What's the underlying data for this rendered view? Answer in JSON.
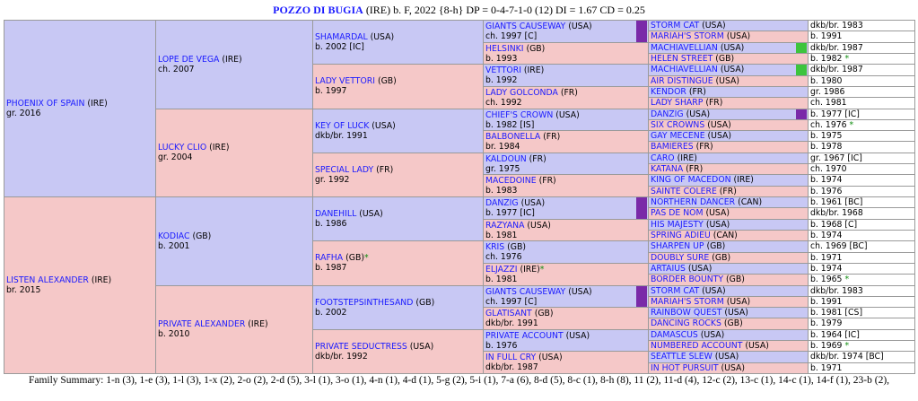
{
  "header": {
    "name": "POZZO DI BUGIA",
    "rest": " (IRE) b. F, 2022 {8-h} DP = 0-4-7-1-0 (12) DI = 1.67   CD = 0.25"
  },
  "footer": {
    "summary": "Family Summary: 1-n (3), 1-e (3), 1-l (3), 1-x (2), 2-o (2), 2-d (5), 3-l (1), 3-o (1), 4-n (1), 4-d (1), 5-g (2), 5-i (1), 7-a (6), 8-d (5), 8-c (1), 8-h (8), 11 (2), 11-d (4), 12-c (2), 13-c (1), 14-c (1), 14-f (1), 23-b (2),"
  },
  "colors": {
    "male": "#c8c8f4",
    "female": "#f5c8c8",
    "link": "#1a1aff",
    "marker_violet": "#7a2aa8",
    "marker_green": "#3dc43d",
    "star": "#0a8a0a"
  },
  "gen1": [
    {
      "name": "PHOENIX OF SPAIN",
      "origin": " (IRE)",
      "info": "gr. 2016"
    },
    {
      "name": "LISTEN ALEXANDER",
      "origin": " (IRE)",
      "info": "br. 2015"
    }
  ],
  "gen2": [
    {
      "name": "LOPE DE VEGA",
      "origin": " (IRE)",
      "info": "ch. 2007"
    },
    {
      "name": "LUCKY CLIO",
      "origin": " (IRE)",
      "info": "gr. 2004"
    },
    {
      "name": "KODIAC",
      "origin": " (GB)",
      "info": "b. 2001"
    },
    {
      "name": "PRIVATE ALEXANDER",
      "origin": " (IRE)",
      "info": "b. 2010"
    }
  ],
  "gen3": [
    {
      "name": "SHAMARDAL",
      "origin": " (USA)",
      "info": "b. 2002 [IC]"
    },
    {
      "name": "LADY VETTORI",
      "origin": " (GB)",
      "info": "b. 1997"
    },
    {
      "name": "KEY OF LUCK",
      "origin": " (USA)",
      "info": "dkb/br. 1991"
    },
    {
      "name": "SPECIAL LADY",
      "origin": " (FR)",
      "info": "gr. 1992"
    },
    {
      "name": "DANEHILL",
      "origin": " (USA)",
      "info": "b. 1986"
    },
    {
      "name": "RAFHA",
      "origin": " (GB)",
      "star": "*",
      "info": "b. 1987"
    },
    {
      "name": "FOOTSTEPSINTHESAND",
      "origin": " (GB)",
      "info": "b. 2002"
    },
    {
      "name": "PRIVATE SEDUCTRESS",
      "origin": " (USA)",
      "info": "dkb/br. 1992"
    }
  ],
  "gen4": [
    {
      "name": "GIANTS CAUSEWAY",
      "origin": " (USA)",
      "info": "ch. 1997 [C]"
    },
    {
      "name": "HELSINKI",
      "origin": " (GB)",
      "info": "b. 1993"
    },
    {
      "name": "VETTORI",
      "origin": " (IRE)",
      "info": "b. 1992"
    },
    {
      "name": "LADY GOLCONDA",
      "origin": " (FR)",
      "info": "ch. 1992"
    },
    {
      "name": "CHIEF'S CROWN",
      "origin": " (USA)",
      "info": "b. 1982 [IS]"
    },
    {
      "name": "BALBONELLA",
      "origin": " (FR)",
      "info": "br. 1984"
    },
    {
      "name": "KALDOUN",
      "origin": " (FR)",
      "info": "gr. 1975"
    },
    {
      "name": "MACEDOINE",
      "origin": " (FR)",
      "info": "b. 1983"
    },
    {
      "name": "DANZIG",
      "origin": " (USA)",
      "info": "b. 1977 [IC]"
    },
    {
      "name": "RAZYANA",
      "origin": " (USA)",
      "info": "b. 1981"
    },
    {
      "name": "KRIS",
      "origin": " (GB)",
      "info": "ch. 1976"
    },
    {
      "name": "ELJAZZI",
      "origin": " (IRE)",
      "star": "*",
      "info": "b. 1981"
    },
    {
      "name": "GIANTS CAUSEWAY",
      "origin": " (USA)",
      "info": "ch. 1997 [C]"
    },
    {
      "name": "GLATISANT",
      "origin": " (GB)",
      "info": "dkb/br. 1991"
    },
    {
      "name": "PRIVATE ACCOUNT",
      "origin": " (USA)",
      "info": "b. 1976"
    },
    {
      "name": "IN FULL CRY",
      "origin": " (USA)",
      "info": "dkb/br. 1987"
    }
  ],
  "gen5": [
    {
      "name": "STORM CAT",
      "origin": " (USA)",
      "info": "dkb/br. 1983"
    },
    {
      "name": "MARIAH'S STORM",
      "origin": " (USA)",
      "info": "b. 1991"
    },
    {
      "name": "MACHIAVELLIAN",
      "origin": " (USA)",
      "info": "dkb/br. 1987"
    },
    {
      "name": "HELEN STREET",
      "origin": " (GB)",
      "info": "b. 1982",
      "star": "*"
    },
    {
      "name": "MACHIAVELLIAN",
      "origin": " (USA)",
      "info": "dkb/br. 1987"
    },
    {
      "name": "AIR DISTINGUE",
      "origin": " (USA)",
      "info": "b. 1980"
    },
    {
      "name": "KENDOR",
      "origin": " (FR)",
      "info": "gr. 1986"
    },
    {
      "name": "LADY SHARP",
      "origin": " (FR)",
      "info": "ch. 1981"
    },
    {
      "name": "DANZIG",
      "origin": " (USA)",
      "info": "b. 1977 [IC]"
    },
    {
      "name": "SIX CROWNS",
      "origin": " (USA)",
      "info": "ch. 1976",
      "star": "*"
    },
    {
      "name": "GAY MECENE",
      "origin": " (USA)",
      "info": "b. 1975"
    },
    {
      "name": "BAMIERES",
      "origin": " (FR)",
      "info": "b. 1978"
    },
    {
      "name": "CARO",
      "origin": " (IRE)",
      "info": "gr. 1967 [IC]"
    },
    {
      "name": "KATANA",
      "origin": " (FR)",
      "info": "ch. 1970"
    },
    {
      "name": "KING OF MACEDON",
      "origin": " (IRE)",
      "info": "b. 1974"
    },
    {
      "name": "SAINTE COLERE",
      "origin": " (FR)",
      "info": "b. 1976"
    },
    {
      "name": "NORTHERN DANCER",
      "origin": " (CAN)",
      "info": "b. 1961 [BC]"
    },
    {
      "name": "PAS DE NOM",
      "origin": " (USA)",
      "info": "dkb/br. 1968"
    },
    {
      "name": "HIS MAJESTY",
      "origin": " (USA)",
      "info": "b. 1968 [C]"
    },
    {
      "name": "SPRING ADIEU",
      "origin": " (CAN)",
      "info": "b. 1974"
    },
    {
      "name": "SHARPEN UP",
      "origin": " (GB)",
      "info": "ch. 1969 [BC]"
    },
    {
      "name": "DOUBLY SURE",
      "origin": " (GB)",
      "info": "b. 1971"
    },
    {
      "name": "ARTAIUS",
      "origin": " (USA)",
      "info": "b. 1974"
    },
    {
      "name": "BORDER BOUNTY",
      "origin": " (GB)",
      "info": "b. 1965",
      "star": "*"
    },
    {
      "name": "STORM CAT",
      "origin": " (USA)",
      "info": "dkb/br. 1983"
    },
    {
      "name": "MARIAH'S STORM",
      "origin": " (USA)",
      "info": "b. 1991"
    },
    {
      "name": "RAINBOW QUEST",
      "origin": " (USA)",
      "info": "b. 1981 [CS]"
    },
    {
      "name": "DANCING ROCKS",
      "origin": " (GB)",
      "info": "b. 1979"
    },
    {
      "name": "DAMASCUS",
      "origin": " (USA)",
      "info": "b. 1964 [IC]"
    },
    {
      "name": "NUMBERED ACCOUNT",
      "origin": " (USA)",
      "info": "b. 1969",
      "star": "*"
    },
    {
      "name": "SEATTLE SLEW",
      "origin": " (USA)",
      "info": "dkb/br. 1974 [BC]"
    },
    {
      "name": "IN HOT PURSUIT",
      "origin": " (USA)",
      "info": "b. 1971"
    }
  ]
}
